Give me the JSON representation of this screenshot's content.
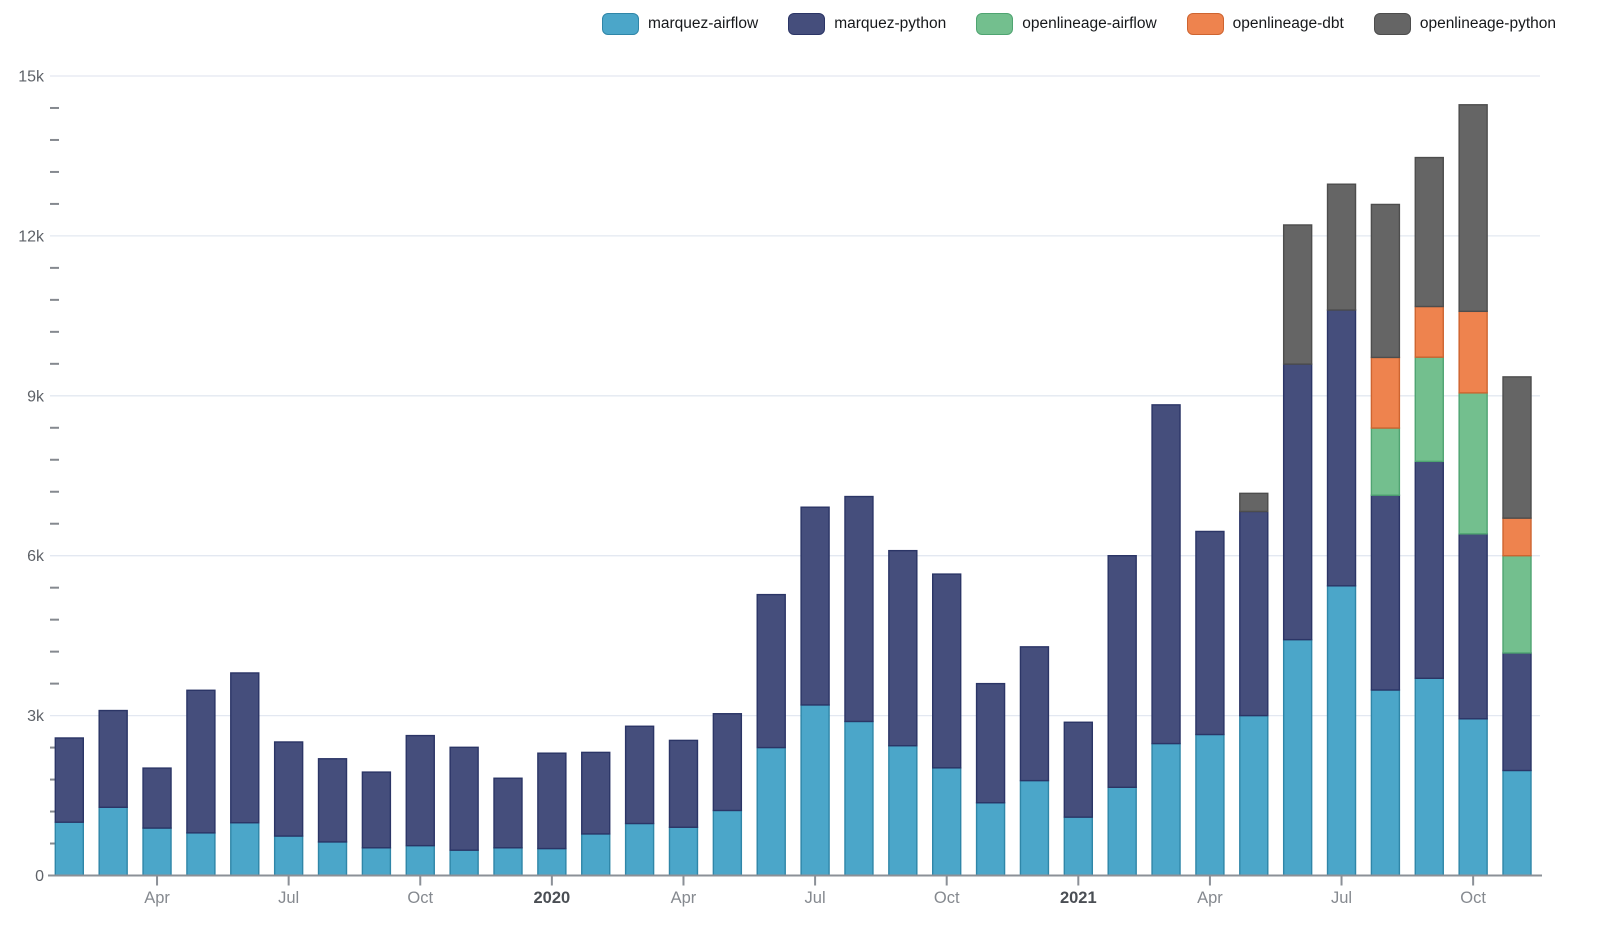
{
  "chart_data": {
    "type": "bar",
    "stacked": true,
    "title": "",
    "xlabel": "",
    "ylabel": "",
    "ylim": [
      0,
      15000
    ],
    "grid": "horizontal",
    "legend_position": "top-right",
    "categories": [
      "Feb 2019",
      "Mar 2019",
      "Apr 2019",
      "May 2019",
      "Jun 2019",
      "Jul 2019",
      "Aug 2019",
      "Sep 2019",
      "Oct 2019",
      "Nov 2019",
      "Dec 2019",
      "Jan 2020",
      "Feb 2020",
      "Mar 2020",
      "Apr 2020",
      "May 2020",
      "Jun 2020",
      "Jul 2020",
      "Aug 2020",
      "Sep 2020",
      "Oct 2020",
      "Nov 2020",
      "Dec 2020",
      "Jan 2021",
      "Feb 2021",
      "Mar 2021",
      "Apr 2021",
      "May 2021",
      "Jun 2021",
      "Jul 2021",
      "Aug 2021",
      "Sep 2021",
      "Oct 2021",
      "Nov 2021"
    ],
    "series": [
      {
        "name": "marquez-airflow",
        "color": "#4BA6C9",
        "border": "#2F86A8",
        "values": [
          1000,
          1280,
          890,
          800,
          990,
          740,
          630,
          520,
          560,
          475,
          520,
          505,
          780,
          975,
          905,
          1220,
          2400,
          3200,
          2890,
          2435,
          2020,
          1365,
          1780,
          1095,
          1655,
          2475,
          2645,
          3000,
          4425,
          5435,
          3480,
          3700,
          2940,
          1970
        ]
      },
      {
        "name": "marquez-python",
        "color": "#454E7C",
        "border": "#2B3566",
        "values": [
          1580,
          1815,
          1125,
          2675,
          2810,
          1765,
          1560,
          1420,
          2065,
          1930,
          1305,
          1790,
          1530,
          1825,
          1630,
          1815,
          2870,
          3710,
          4220,
          3660,
          3635,
          2235,
          2510,
          1780,
          4345,
          6355,
          3810,
          3830,
          5170,
          5175,
          3655,
          4070,
          3470,
          2205
        ]
      },
      {
        "name": "openlineage-airflow",
        "color": "#73BF8E",
        "border": "#4FA471",
        "values": [
          0,
          0,
          0,
          0,
          0,
          0,
          0,
          0,
          0,
          0,
          0,
          0,
          0,
          0,
          0,
          0,
          0,
          0,
          0,
          0,
          0,
          0,
          0,
          0,
          0,
          0,
          0,
          0,
          0,
          0,
          1260,
          1955,
          2645,
          1825
        ]
      },
      {
        "name": "openlineage-dbt",
        "color": "#EE834E",
        "border": "#CE6430",
        "values": [
          0,
          0,
          0,
          0,
          0,
          0,
          0,
          0,
          0,
          0,
          0,
          0,
          0,
          0,
          0,
          0,
          0,
          0,
          0,
          0,
          0,
          0,
          0,
          0,
          0,
          0,
          0,
          0,
          0,
          0,
          1325,
          950,
          1530,
          705
        ]
      },
      {
        "name": "openlineage-python",
        "color": "#656565",
        "border": "#4D4D4D",
        "values": [
          0,
          0,
          0,
          0,
          0,
          0,
          0,
          0,
          0,
          0,
          0,
          0,
          0,
          0,
          0,
          0,
          0,
          0,
          0,
          0,
          0,
          0,
          0,
          0,
          0,
          0,
          0,
          340,
          2610,
          2360,
          2870,
          2795,
          3875,
          2650
        ]
      }
    ],
    "y_ticks": [
      {
        "value": 0,
        "label": "0"
      },
      {
        "value": 3000,
        "label": "3k"
      },
      {
        "value": 6000,
        "label": "6k"
      },
      {
        "value": 9000,
        "label": "9k"
      },
      {
        "value": 12000,
        "label": "12k"
      },
      {
        "value": 15000,
        "label": "15k"
      }
    ],
    "y_minor_interval": 600,
    "x_ticks": [
      {
        "index": 2,
        "label": "Apr",
        "bold": false
      },
      {
        "index": 5,
        "label": "Jul",
        "bold": false
      },
      {
        "index": 8,
        "label": "Oct",
        "bold": false
      },
      {
        "index": 11,
        "label": "2020",
        "bold": true
      },
      {
        "index": 14,
        "label": "Apr",
        "bold": false
      },
      {
        "index": 17,
        "label": "Jul",
        "bold": false
      },
      {
        "index": 20,
        "label": "Oct",
        "bold": false
      },
      {
        "index": 23,
        "label": "2021",
        "bold": true
      },
      {
        "index": 26,
        "label": "Apr",
        "bold": false
      },
      {
        "index": 29,
        "label": "Jul",
        "bold": false
      },
      {
        "index": 32,
        "label": "Oct",
        "bold": false
      }
    ],
    "style": {
      "background": "#FFFFFF",
      "grid_color": "#E3E8F1",
      "axis_color": "#8B9097",
      "tick_color": "#85898F",
      "y_label_color": "#5E6268",
      "x_label_color": "#85898F",
      "x_year_label_color": "#4A4E54",
      "legend_text_color": "#16181B"
    }
  }
}
